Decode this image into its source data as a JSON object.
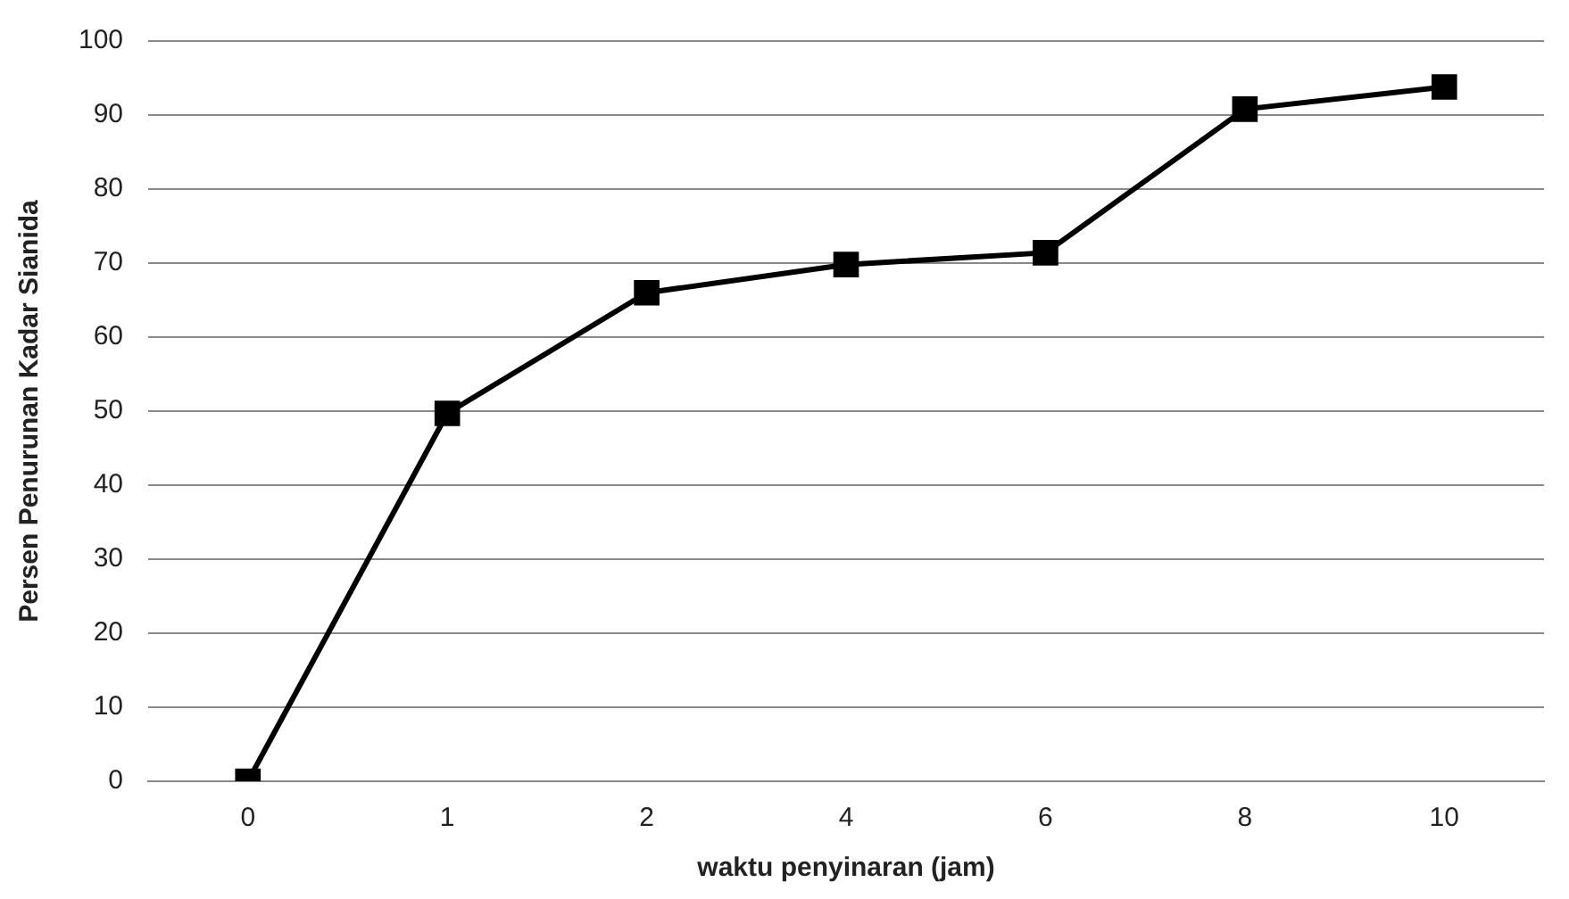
{
  "chart_data": {
    "type": "line",
    "xlabel": "waktu penyinaran (jam)",
    "ylabel": "Persen Penurunan Kadar Sianida",
    "categories": [
      "0",
      "1",
      "2",
      "4",
      "6",
      "8",
      "10"
    ],
    "series": [
      {
        "color": "#000000",
        "values": [
          0,
          49.7,
          66,
          69.8,
          71.4,
          90.8,
          93.8
        ]
      }
    ],
    "ylim": [
      0,
      100
    ],
    "yticks": [
      0,
      10,
      20,
      30,
      40,
      50,
      60,
      70,
      80,
      90,
      100
    ],
    "grid": "y",
    "legend": false,
    "marker": "square",
    "line_style": "solid"
  }
}
